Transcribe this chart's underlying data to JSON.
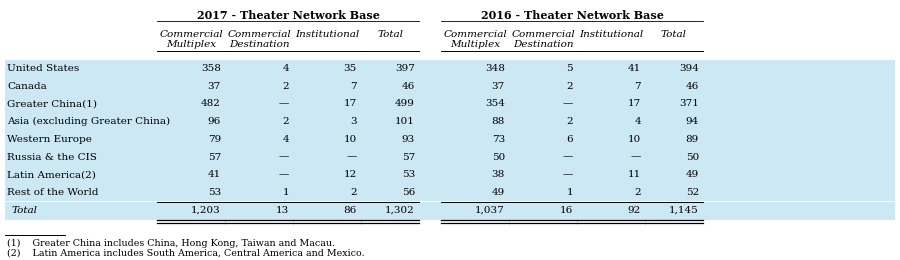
{
  "title_2017": "2017 - Theater Network Base",
  "title_2016": "2016 - Theater Network Base",
  "col_headers": [
    "Commercial\nMultiplex",
    "Commercial\nDestination",
    "Institutional",
    "Total",
    "Commercial\nMultiplex",
    "Commercial\nDestination",
    "Institutional",
    "Total"
  ],
  "row_labels_raw": [
    "United States",
    "Canada",
    "Greater China(1)",
    "Asia (excluding Greater China)",
    "Western Europe",
    "Russia & the CIS",
    "Latin America(2)",
    "Rest of the World",
    "Total"
  ],
  "data_2017": [
    [
      "358",
      "4",
      "35",
      "397"
    ],
    [
      "37",
      "2",
      "7",
      "46"
    ],
    [
      "482",
      "—",
      "17",
      "499"
    ],
    [
      "96",
      "2",
      "3",
      "101"
    ],
    [
      "79",
      "4",
      "10",
      "93"
    ],
    [
      "57",
      "—",
      "—",
      "57"
    ],
    [
      "41",
      "—",
      "12",
      "53"
    ],
    [
      "53",
      "1",
      "2",
      "56"
    ],
    [
      "1,203",
      "13",
      "86",
      "1,302"
    ]
  ],
  "data_2016": [
    [
      "348",
      "5",
      "41",
      "394"
    ],
    [
      "37",
      "2",
      "7",
      "46"
    ],
    [
      "354",
      "—",
      "17",
      "371"
    ],
    [
      "88",
      "2",
      "4",
      "94"
    ],
    [
      "73",
      "6",
      "10",
      "89"
    ],
    [
      "50",
      "—",
      "—",
      "50"
    ],
    [
      "38",
      "—",
      "11",
      "49"
    ],
    [
      "49",
      "1",
      "2",
      "52"
    ],
    [
      "1,037",
      "16",
      "92",
      "1,145"
    ]
  ],
  "footnotes": [
    "(1)    Greater China includes China, Hong Kong, Taiwan and Macau.",
    "(2)    Latin America includes South America, Central America and Mexico."
  ],
  "bg_color": "#cce8f4",
  "white": "#ffffff",
  "font_size": 7.5,
  "header_font_size": 7.5,
  "title_font_size": 8.0,
  "footnote_font_size": 6.8
}
